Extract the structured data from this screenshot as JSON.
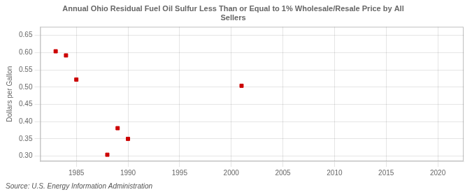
{
  "chart_data": {
    "type": "scatter",
    "title": "Annual Ohio Residual Fuel Oil Sulfur Less Than or Equal to 1% Wholesale/Resale Price by All\nSellers",
    "ylabel": "Dollars per Gallon",
    "annotations": [
      "Source: U.S. Energy Information Administration"
    ],
    "x": [
      1983,
      1984,
      1985,
      1988,
      1989,
      1990,
      2001
    ],
    "values": [
      0.604,
      0.592,
      0.522,
      0.304,
      0.381,
      0.35,
      0.504
    ],
    "color": "#cc0000",
    "marker": "square",
    "xlim": [
      1981.5,
      2022.5
    ],
    "xticks": [
      1985,
      1990,
      1995,
      2000,
      2005,
      2010,
      2015,
      2020
    ],
    "ylim": [
      0.285,
      0.675
    ],
    "yticks": [
      {
        "value": 0.3,
        "label": "0.30"
      },
      0.35,
      {
        "value": 0.4,
        "label": "0.40"
      },
      0.45,
      {
        "value": 0.5,
        "label": "0.50"
      },
      0.55,
      {
        "value": 0.6,
        "label": "0.60"
      },
      0.65
    ],
    "grid": true
  }
}
